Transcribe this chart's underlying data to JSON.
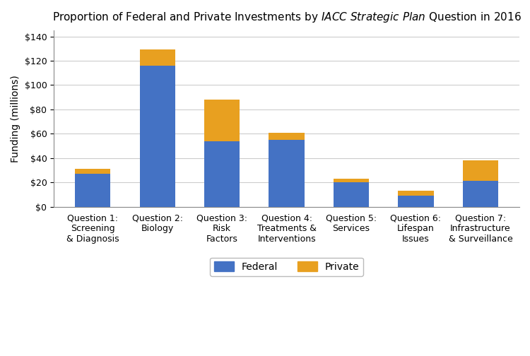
{
  "categories": [
    "Question 1:\nScreening\n& Diagnosis",
    "Question 2:\nBiology",
    "Question 3:\nRisk\nFactors",
    "Question 4:\nTreatments &\nInterventions",
    "Question 5:\nServices",
    "Question 6:\nLifespan\nIssues",
    "Question 7:\nInfrastructure\n& Surveillance"
  ],
  "federal": [
    27,
    116,
    54,
    55,
    20,
    9,
    21
  ],
  "private": [
    4,
    13,
    34,
    6,
    3,
    4,
    17
  ],
  "federal_color": "#4472C4",
  "private_color": "#E8A020",
  "ylabel": "Funding (millions)",
  "ylim": [
    0,
    145
  ],
  "yticks": [
    0,
    20,
    40,
    60,
    80,
    100,
    120,
    140
  ],
  "ytick_labels": [
    "$0",
    "$20",
    "$40",
    "$60",
    "$80",
    "$100",
    "$120",
    "$140"
  ],
  "legend_labels": [
    "Federal",
    "Private"
  ],
  "background_color": "#ffffff",
  "plot_bg_color": "#ffffff",
  "grid_color": "#cccccc",
  "bar_width": 0.55,
  "title_fontsize": 11.0,
  "axis_label_fontsize": 10,
  "tick_fontsize": 9,
  "legend_fontsize": 10
}
